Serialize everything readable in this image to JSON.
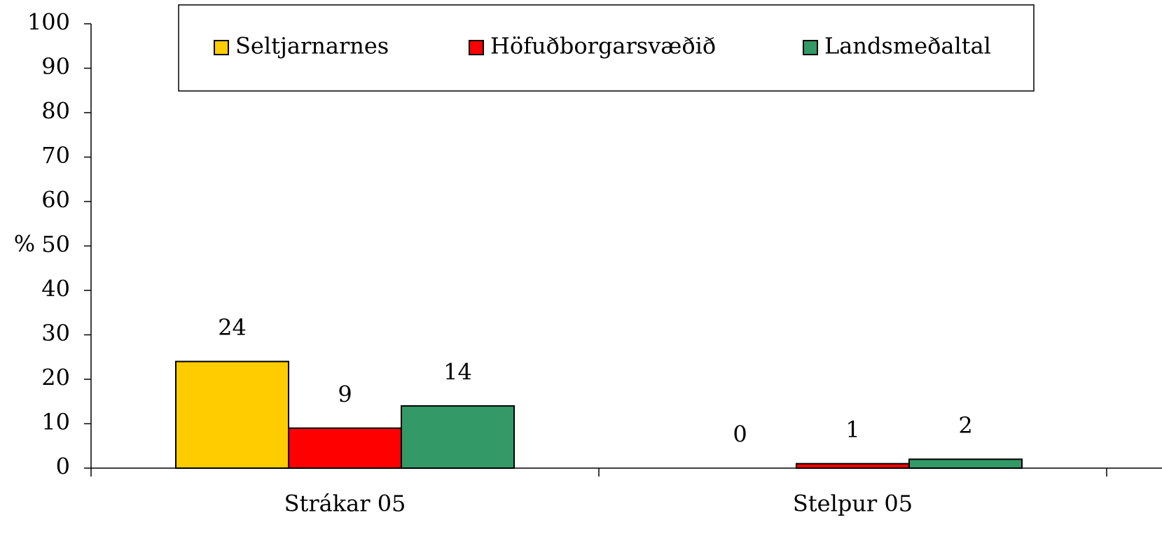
{
  "chart_data": {
    "type": "bar",
    "y_label": "%",
    "categories": [
      "Strákar 05",
      "Stelpur 05"
    ],
    "series": [
      {
        "name": "Seltjarnarnes",
        "color": "#ffcc00",
        "values": [
          24,
          0
        ]
      },
      {
        "name": "Höfuðborgarsvæðið",
        "color": "#ff0000",
        "values": [
          9,
          1
        ]
      },
      {
        "name": "Landsmeðaltal",
        "color": "#339966",
        "values": [
          14,
          2
        ]
      }
    ],
    "ylim": [
      0,
      100
    ],
    "yticks": [
      0,
      10,
      20,
      30,
      40,
      50,
      60,
      70,
      80,
      90,
      100
    ],
    "grid": false,
    "legend": "top"
  }
}
